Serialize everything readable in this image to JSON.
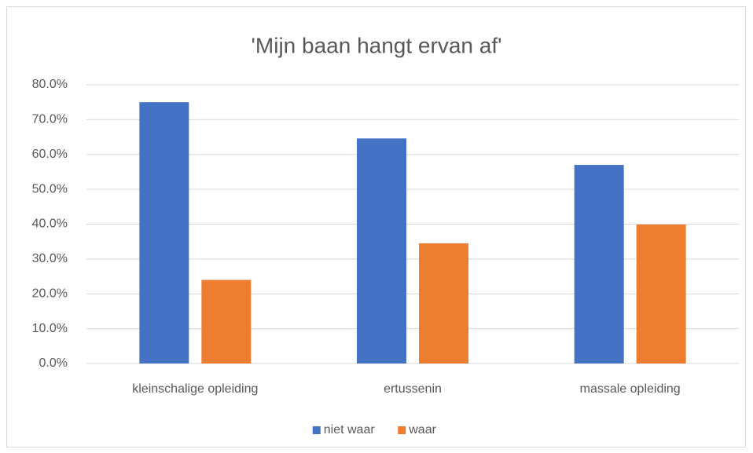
{
  "chart_data": {
    "type": "bar",
    "title": "'Mijn baan hangt ervan af'",
    "categories": [
      "kleinschalige opleiding",
      "ertussenin",
      "massale opleiding"
    ],
    "series": [
      {
        "name": "niet waar",
        "color": "#4472c4",
        "values": [
          75.0,
          64.6,
          57.0
        ]
      },
      {
        "name": "waar",
        "color": "#ed7d31",
        "values": [
          24.0,
          34.5,
          39.9
        ]
      }
    ],
    "ylim": [
      0,
      80
    ],
    "yticks": [
      {
        "value": 0,
        "label": "0.0%"
      },
      {
        "value": 10,
        "label": "10.0%"
      },
      {
        "value": 20,
        "label": "20.0%"
      },
      {
        "value": 30,
        "label": "30.0%"
      },
      {
        "value": 40,
        "label": "40.0%"
      },
      {
        "value": 50,
        "label": "50.0%"
      },
      {
        "value": 60,
        "label": "60.0%"
      },
      {
        "value": 70,
        "label": "70.0%"
      },
      {
        "value": 80,
        "label": "80.0%"
      }
    ],
    "grid": true,
    "legend": "bottom"
  }
}
